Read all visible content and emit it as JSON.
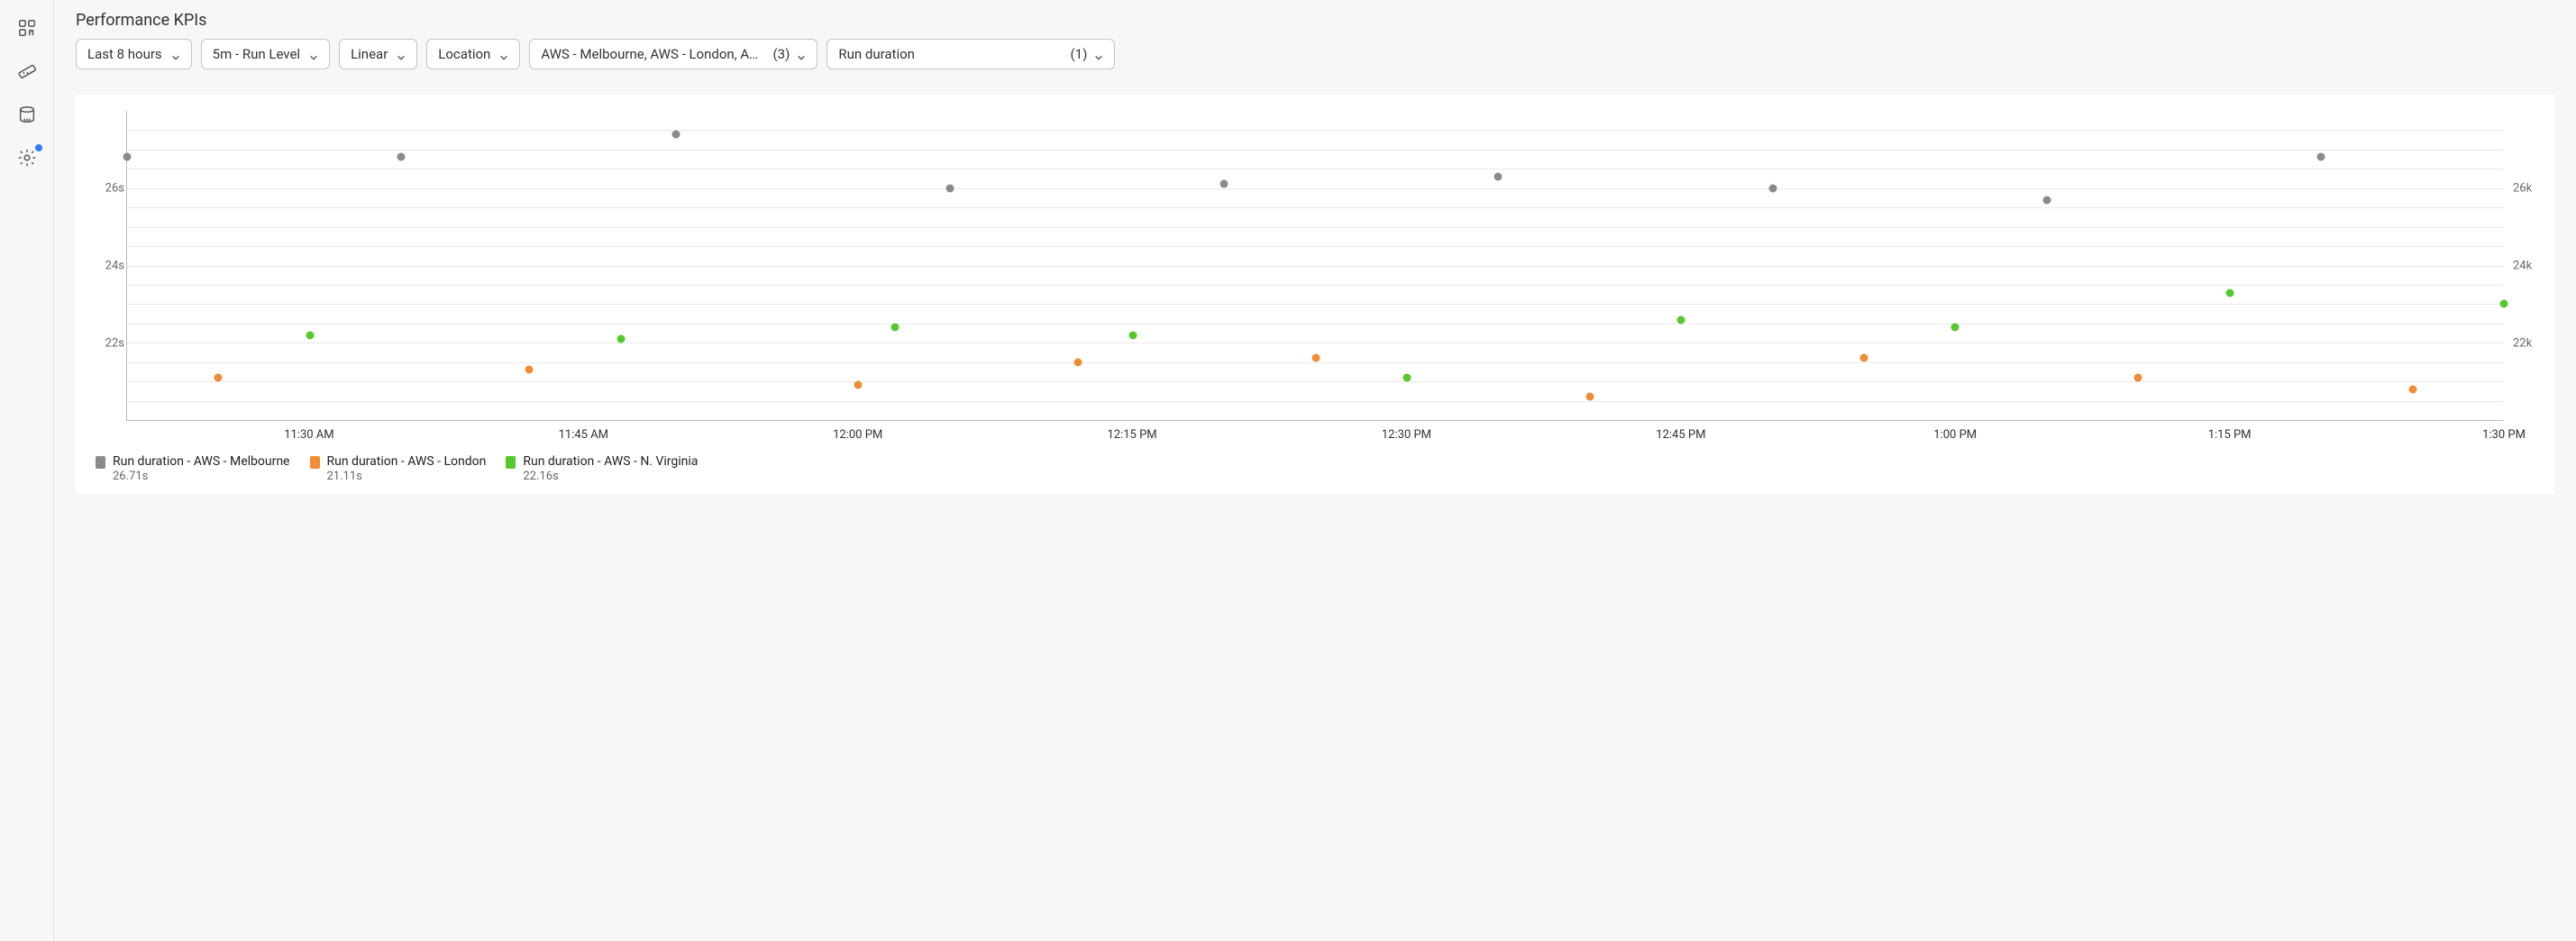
{
  "page": {
    "title": "Performance KPIs"
  },
  "filters": {
    "time_range": "Last 8 hours",
    "run_level": "5m - Run Level",
    "scale": "Linear",
    "group_by": "Location",
    "locations_label": "AWS - Melbourne, AWS - London, A…",
    "locations_count": "(3)",
    "metric_label": "Run duration",
    "metric_count": "(1)"
  },
  "chart": {
    "type": "scatter",
    "background_color": "#ffffff",
    "grid_color": "#e8e8e8",
    "axis_color": "#bbbbbb",
    "tick_font_size": 13,
    "point_radius": 4.5,
    "y_left": {
      "min": 20,
      "max": 28,
      "ticks": [
        {
          "value": 22,
          "label": "22s"
        },
        {
          "value": 24,
          "label": "24s"
        },
        {
          "value": 26,
          "label": "26s"
        }
      ],
      "gridlines_every": 0.5
    },
    "y_right": {
      "ticks": [
        {
          "value": 22,
          "label": "22k"
        },
        {
          "value": 24,
          "label": "24k"
        },
        {
          "value": 26,
          "label": "26k"
        }
      ]
    },
    "x": {
      "min": 0,
      "max": 130,
      "ticks": [
        {
          "value": 10,
          "label": "11:30 AM"
        },
        {
          "value": 25,
          "label": "11:45 AM"
        },
        {
          "value": 40,
          "label": "12:00 PM"
        },
        {
          "value": 55,
          "label": "12:15 PM"
        },
        {
          "value": 70,
          "label": "12:30 PM"
        },
        {
          "value": 85,
          "label": "12:45 PM"
        },
        {
          "value": 100,
          "label": "1:00 PM"
        },
        {
          "value": 115,
          "label": "1:15 PM"
        },
        {
          "value": 130,
          "label": "1:30 PM"
        }
      ]
    },
    "series": [
      {
        "id": "melbourne",
        "label": "Run duration - AWS - Melbourne",
        "color": "#8a8a8a",
        "current": "26.71s",
        "points": [
          {
            "x": 0,
            "y": 26.8
          },
          {
            "x": 15,
            "y": 26.8
          },
          {
            "x": 30,
            "y": 27.4
          },
          {
            "x": 45,
            "y": 26.0
          },
          {
            "x": 60,
            "y": 26.1
          },
          {
            "x": 75,
            "y": 26.3
          },
          {
            "x": 90,
            "y": 26.0
          },
          {
            "x": 105,
            "y": 25.7
          },
          {
            "x": 120,
            "y": 26.8
          }
        ]
      },
      {
        "id": "london",
        "label": "Run duration - AWS - London",
        "color": "#f08c34",
        "current": "21.11s",
        "points": [
          {
            "x": 5,
            "y": 21.1
          },
          {
            "x": 22,
            "y": 21.3
          },
          {
            "x": 40,
            "y": 20.9
          },
          {
            "x": 52,
            "y": 21.5
          },
          {
            "x": 65,
            "y": 21.6
          },
          {
            "x": 80,
            "y": 20.6
          },
          {
            "x": 95,
            "y": 21.6
          },
          {
            "x": 110,
            "y": 21.1
          },
          {
            "x": 125,
            "y": 20.8
          }
        ]
      },
      {
        "id": "nvirginia",
        "label": "Run duration - AWS - N. Virginia",
        "color": "#54c92e",
        "current": "22.16s",
        "points": [
          {
            "x": 10,
            "y": 22.2
          },
          {
            "x": 27,
            "y": 22.1
          },
          {
            "x": 42,
            "y": 22.4
          },
          {
            "x": 55,
            "y": 22.2
          },
          {
            "x": 70,
            "y": 21.1
          },
          {
            "x": 85,
            "y": 22.6
          },
          {
            "x": 100,
            "y": 22.4
          },
          {
            "x": 115,
            "y": 23.3
          },
          {
            "x": 130,
            "y": 23.0
          }
        ]
      }
    ]
  }
}
